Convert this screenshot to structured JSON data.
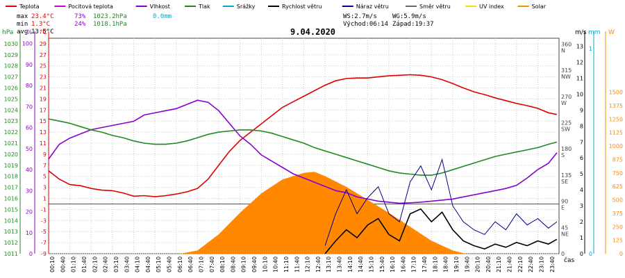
{
  "legend": [
    {
      "label": "Teplota",
      "color": "#dd0000"
    },
    {
      "label": "Pocitová teplota",
      "color": "#cc00cc"
    },
    {
      "label": "Vlhkost",
      "color": "#8800cc"
    },
    {
      "label": "Tlak",
      "color": "#228822"
    },
    {
      "label": "Srážky",
      "color": "#00aacc"
    },
    {
      "label": "Rychlost větru",
      "color": "#000000"
    },
    {
      "label": "Náraz větru",
      "color": "#000088"
    },
    {
      "label": "Směr větru",
      "color": "#666666"
    },
    {
      "label": "UV index",
      "color": "#ffdd00"
    },
    {
      "label": "Solar",
      "color": "#ff8800"
    }
  ],
  "stats": {
    "max_label": "max",
    "max_temp": "23.4°C",
    "max_hum": "73%",
    "max_press": "1023.2hPa",
    "max_rain": "0.0mm",
    "min_label": "min",
    "min_temp": "1.3°C",
    "min_hum": "24%",
    "min_press": "1018.1hPa",
    "avg_label": "avg",
    "avg_temp": "13.5°C"
  },
  "wind_info": {
    "ws": "WS:2.7m/s",
    "wg": "WG:5.9m/s",
    "sunrise": "Východ:06:14",
    "sunset": "Západ:19:37"
  },
  "date": "9.04.2020",
  "unit_labels": {
    "hpa": "hPa",
    "pct": "%",
    "degc": "°C",
    "ms": "m/s",
    "mm": "mm",
    "w": "W",
    "time": "čas"
  },
  "chart_data": {
    "type": "line",
    "title": "9.04.2020",
    "x_time_labels": [
      "00:10",
      "00:40",
      "01:10",
      "01:40",
      "02:10",
      "02:40",
      "03:10",
      "03:40",
      "04:10",
      "04:40",
      "05:10",
      "05:40",
      "06:10",
      "06:40",
      "07:10",
      "07:40",
      "08:10",
      "08:40",
      "09:10",
      "09:40",
      "10:10",
      "10:40",
      "11:10",
      "11:40",
      "12:10",
      "12:40",
      "13:10",
      "13:40",
      "14:10",
      "14:40",
      "15:10",
      "15:40",
      "16:10",
      "16:40",
      "17:10",
      "17:40",
      "18:10",
      "18:40",
      "19:10",
      "19:40",
      "20:10",
      "20:40",
      "21:10",
      "21:40",
      "22:10",
      "22:40",
      "23:10",
      "23:40"
    ],
    "axes": {
      "pressure_hpa": {
        "ticks": [
          1011,
          1012,
          1013,
          1014,
          1015,
          1016,
          1017,
          1018,
          1019,
          1020,
          1021,
          1022,
          1023,
          1024,
          1025,
          1026,
          1027,
          1028,
          1029,
          1030
        ],
        "range": [
          1011,
          1030.5
        ]
      },
      "humidity_pct": {
        "ticks": [
          0,
          10,
          20,
          30,
          40,
          50,
          60,
          70,
          80,
          90,
          100
        ],
        "range": [
          0,
          102.5
        ]
      },
      "temperature_c": {
        "ticks": [
          -9,
          -7,
          -5,
          -3,
          -1,
          1,
          3,
          5,
          7,
          9,
          11,
          13,
          15,
          17,
          19,
          21,
          23,
          25,
          27,
          29
        ],
        "range": [
          -9,
          30
        ]
      },
      "wind_dir": {
        "ticks": [
          0,
          45,
          90,
          135,
          180,
          225,
          270,
          315,
          360
        ],
        "labels": [
          "",
          "NE",
          "E",
          "SE",
          "S",
          "SW",
          "W",
          "NW",
          "N"
        ],
        "range": [
          0,
          370
        ]
      },
      "wind_ms": {
        "ticks": [
          0,
          1,
          2,
          3,
          4,
          5,
          6,
          7,
          8,
          9,
          10,
          11,
          12,
          13
        ],
        "range": [
          0,
          13.5
        ]
      },
      "rain_mm": {
        "ticks": [
          0,
          1
        ],
        "range": [
          0,
          1.05
        ]
      },
      "solar_w": {
        "ticks": [
          0,
          125,
          250,
          375,
          500,
          625,
          750,
          875,
          1000,
          1125,
          1250,
          1375,
          1500
        ],
        "range": [
          0,
          2000
        ]
      }
    },
    "series": [
      {
        "name": "Teplota",
        "unit": "°C",
        "points": [
          [
            0,
            6
          ],
          [
            0.5,
            4.5
          ],
          [
            1,
            3.5
          ],
          [
            1.5,
            3.3
          ],
          [
            2,
            2.8
          ],
          [
            2.5,
            2.5
          ],
          [
            3,
            2.4
          ],
          [
            3.5,
            2.0
          ],
          [
            4,
            1.4
          ],
          [
            4.5,
            1.5
          ],
          [
            5,
            1.3
          ],
          [
            5.5,
            1.5
          ],
          [
            6,
            1.8
          ],
          [
            6.5,
            2.2
          ],
          [
            7,
            2.8
          ],
          [
            7.5,
            4.5
          ],
          [
            8,
            7
          ],
          [
            8.5,
            9.5
          ],
          [
            9,
            11.5
          ],
          [
            9.5,
            13
          ],
          [
            10,
            14.5
          ],
          [
            10.5,
            16
          ],
          [
            11,
            17.5
          ],
          [
            11.5,
            18.5
          ],
          [
            12,
            19.5
          ],
          [
            12.5,
            20.5
          ],
          [
            13,
            21.5
          ],
          [
            13.5,
            22.3
          ],
          [
            14,
            22.7
          ],
          [
            14.5,
            22.8
          ],
          [
            15,
            22.8
          ],
          [
            15.5,
            23.0
          ],
          [
            16,
            23.2
          ],
          [
            16.5,
            23.3
          ],
          [
            17,
            23.4
          ],
          [
            17.5,
            23.3
          ],
          [
            18,
            23.0
          ],
          [
            18.5,
            22.5
          ],
          [
            19,
            21.8
          ],
          [
            19.5,
            21.0
          ],
          [
            20,
            20.3
          ],
          [
            20.5,
            19.8
          ],
          [
            21,
            19.2
          ],
          [
            21.5,
            18.7
          ],
          [
            22,
            18.2
          ],
          [
            22.5,
            17.8
          ],
          [
            23,
            17.3
          ],
          [
            23.5,
            16.5
          ],
          [
            23.9,
            16.2
          ]
        ]
      },
      {
        "name": "Vlhkost",
        "unit": "%",
        "points": [
          [
            0,
            45
          ],
          [
            0.5,
            52
          ],
          [
            1,
            55
          ],
          [
            1.5,
            57
          ],
          [
            2,
            59
          ],
          [
            2.5,
            60
          ],
          [
            3,
            61
          ],
          [
            3.5,
            62
          ],
          [
            4,
            63
          ],
          [
            4.5,
            66
          ],
          [
            5,
            67
          ],
          [
            5.5,
            68
          ],
          [
            6,
            69
          ],
          [
            6.5,
            71
          ],
          [
            7,
            73
          ],
          [
            7.5,
            72
          ],
          [
            8,
            68
          ],
          [
            8.5,
            62
          ],
          [
            9,
            56
          ],
          [
            9.5,
            52
          ],
          [
            10,
            47
          ],
          [
            10.5,
            44
          ],
          [
            11,
            41
          ],
          [
            11.5,
            38
          ],
          [
            12,
            36
          ],
          [
            12.5,
            34
          ],
          [
            13,
            32
          ],
          [
            13.5,
            30
          ],
          [
            14,
            29
          ],
          [
            14.5,
            27
          ],
          [
            15,
            26
          ],
          [
            15.5,
            25
          ],
          [
            16,
            24.5
          ],
          [
            16.5,
            24
          ],
          [
            17,
            24.2
          ],
          [
            17.5,
            24.5
          ],
          [
            18,
            25
          ],
          [
            18.5,
            25.5
          ],
          [
            19,
            26
          ],
          [
            19.5,
            27
          ],
          [
            20,
            28
          ],
          [
            20.5,
            29
          ],
          [
            21,
            30
          ],
          [
            21.5,
            31
          ],
          [
            22,
            32.5
          ],
          [
            22.5,
            36
          ],
          [
            23,
            40
          ],
          [
            23.5,
            43
          ],
          [
            23.9,
            48
          ]
        ]
      },
      {
        "name": "Tlak",
        "unit": "hPa",
        "points": [
          [
            0,
            1023.2
          ],
          [
            0.5,
            1023.0
          ],
          [
            1,
            1022.8
          ],
          [
            1.5,
            1022.5
          ],
          [
            2,
            1022.2
          ],
          [
            2.5,
            1022.0
          ],
          [
            3,
            1021.7
          ],
          [
            3.5,
            1021.5
          ],
          [
            4,
            1021.2
          ],
          [
            4.5,
            1021.0
          ],
          [
            5,
            1020.9
          ],
          [
            5.5,
            1020.9
          ],
          [
            6,
            1021.0
          ],
          [
            6.5,
            1021.2
          ],
          [
            7,
            1021.5
          ],
          [
            7.5,
            1021.8
          ],
          [
            8,
            1022.0
          ],
          [
            8.5,
            1022.1
          ],
          [
            9,
            1022.2
          ],
          [
            9.5,
            1022.2
          ],
          [
            10,
            1022.1
          ],
          [
            10.5,
            1021.9
          ],
          [
            11,
            1021.6
          ],
          [
            11.5,
            1021.3
          ],
          [
            12,
            1021.0
          ],
          [
            12.5,
            1020.6
          ],
          [
            13,
            1020.3
          ],
          [
            13.5,
            1020.0
          ],
          [
            14,
            1019.7
          ],
          [
            14.5,
            1019.4
          ],
          [
            15,
            1019.1
          ],
          [
            15.5,
            1018.8
          ],
          [
            16,
            1018.5
          ],
          [
            16.5,
            1018.3
          ],
          [
            17,
            1018.2
          ],
          [
            17.5,
            1018.1
          ],
          [
            18,
            1018.1
          ],
          [
            18.5,
            1018.3
          ],
          [
            19,
            1018.6
          ],
          [
            19.5,
            1018.9
          ],
          [
            20,
            1019.2
          ],
          [
            20.5,
            1019.5
          ],
          [
            21,
            1019.8
          ],
          [
            21.5,
            1020.0
          ],
          [
            22,
            1020.2
          ],
          [
            22.5,
            1020.4
          ],
          [
            23,
            1020.6
          ],
          [
            23.5,
            1020.9
          ],
          [
            23.9,
            1021.1
          ]
        ]
      },
      {
        "name": "Rychlost větru",
        "unit": "m/s",
        "points": [
          [
            13,
            0
          ],
          [
            13.5,
            0.8
          ],
          [
            14,
            1.5
          ],
          [
            14.5,
            1.0
          ],
          [
            15,
            1.8
          ],
          [
            15.5,
            2.2
          ],
          [
            16,
            1.2
          ],
          [
            16.5,
            0.8
          ],
          [
            17,
            2.5
          ],
          [
            17.5,
            2.8
          ],
          [
            18,
            2.0
          ],
          [
            18.5,
            2.6
          ],
          [
            19,
            1.5
          ],
          [
            19.5,
            0.8
          ],
          [
            20,
            0.5
          ],
          [
            20.5,
            0.3
          ],
          [
            21,
            0.6
          ],
          [
            21.5,
            0.4
          ],
          [
            22,
            0.7
          ],
          [
            22.5,
            0.5
          ],
          [
            23,
            0.8
          ],
          [
            23.5,
            0.6
          ],
          [
            23.9,
            0.9
          ]
        ]
      },
      {
        "name": "Náraz větru",
        "unit": "m/s",
        "points": [
          [
            13,
            0.5
          ],
          [
            13.5,
            2.5
          ],
          [
            14,
            4.0
          ],
          [
            14.5,
            2.5
          ],
          [
            15,
            3.5
          ],
          [
            15.5,
            4.2
          ],
          [
            16,
            2.5
          ],
          [
            16.5,
            2.0
          ],
          [
            17,
            4.5
          ],
          [
            17.5,
            5.5
          ],
          [
            18,
            4.0
          ],
          [
            18.5,
            5.9
          ],
          [
            19,
            3.0
          ],
          [
            19.5,
            2.0
          ],
          [
            20,
            1.5
          ],
          [
            20.5,
            1.2
          ],
          [
            21,
            2.0
          ],
          [
            21.5,
            1.5
          ],
          [
            22,
            2.5
          ],
          [
            22.5,
            1.8
          ],
          [
            23,
            2.2
          ],
          [
            23.5,
            1.6
          ],
          [
            23.9,
            2.0
          ]
        ]
      },
      {
        "name": "Solar",
        "unit": "W",
        "points": [
          [
            6.2,
            0
          ],
          [
            7,
            30
          ],
          [
            8,
            180
          ],
          [
            9,
            380
          ],
          [
            10,
            560
          ],
          [
            11,
            690
          ],
          [
            12,
            750
          ],
          [
            12.5,
            760
          ],
          [
            13,
            720
          ],
          [
            14,
            620
          ],
          [
            15,
            500
          ],
          [
            16,
            380
          ],
          [
            17,
            250
          ],
          [
            18,
            120
          ],
          [
            19,
            30
          ],
          [
            19.6,
            0
          ]
        ]
      }
    ]
  }
}
